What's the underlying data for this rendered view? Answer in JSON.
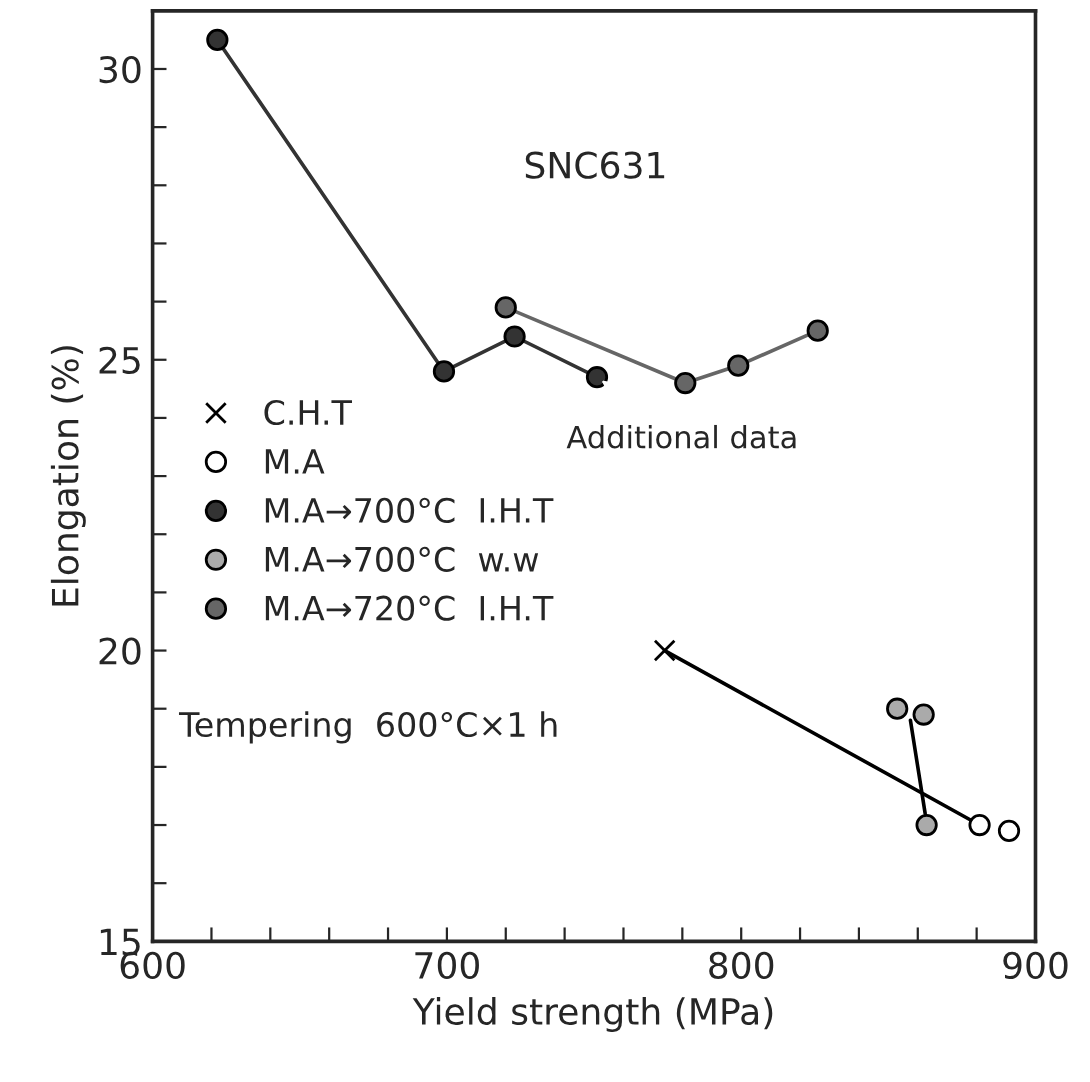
{
  "chart_data": {
    "type": "line",
    "xlabel": "Yield strength (MPa)",
    "ylabel": "Elongation (%)",
    "xlim": [
      600,
      900
    ],
    "ylim": [
      15,
      31
    ],
    "xticks": [
      600,
      {
        "value": 620,
        "label": null
      },
      {
        "value": 640,
        "label": null
      },
      {
        "value": 660,
        "label": null
      },
      {
        "value": 680,
        "label": null
      },
      700,
      {
        "value": 720,
        "label": null
      },
      {
        "value": 740,
        "label": null
      },
      {
        "value": 760,
        "label": null
      },
      {
        "value": 780,
        "label": null
      },
      800,
      {
        "value": 820,
        "label": null
      },
      {
        "value": 840,
        "label": null
      },
      {
        "value": 860,
        "label": null
      },
      {
        "value": 880,
        "label": null
      },
      900
    ],
    "yticks": [
      15,
      {
        "value": 16,
        "label": null
      },
      {
        "value": 17,
        "label": null
      },
      {
        "value": 18,
        "label": null
      },
      {
        "value": 19,
        "label": null
      },
      20,
      {
        "value": 21,
        "label": null
      },
      {
        "value": 22,
        "label": null
      },
      {
        "value": 23,
        "label": null
      },
      {
        "value": 24,
        "label": null
      },
      25,
      {
        "value": 26,
        "label": null
      },
      {
        "value": 27,
        "label": null
      },
      {
        "value": 28,
        "label": null
      },
      {
        "value": 29,
        "label": null
      },
      30
    ],
    "grid": false,
    "legend": "left",
    "series": [
      {
        "name": "C.H.T",
        "type": "scatter",
        "marker": "cross",
        "color": "#000000",
        "x": [
          774
        ],
        "values": [
          20.0
        ]
      },
      {
        "name": "M.A",
        "type": "scatter",
        "marker": "circle",
        "color": "#ffffff",
        "x": [
          881,
          891
        ],
        "values": [
          17.0,
          16.9
        ]
      },
      {
        "name": "M.A→700°C  I.H.T",
        "marker": "circle",
        "color": "#333333",
        "x": [
          622,
          699,
          723,
          751
        ],
        "values": [
          30.5,
          24.8,
          25.4,
          24.7
        ]
      },
      {
        "name": "M.A→700°C  w.w",
        "type": "scatter",
        "marker": "circle",
        "color": "#aaaaaa",
        "x": [
          853,
          862,
          863
        ],
        "values": [
          19.0,
          18.9,
          17.0
        ]
      },
      {
        "name": "M.A→720°C  I.H.T",
        "marker": "circle",
        "color": "#666666",
        "x": [
          720,
          781,
          799,
          826
        ],
        "values": [
          25.9,
          24.6,
          24.9,
          25.5
        ]
      },
      {
        "marker": "none",
        "color": "#000000",
        "x": [
          774,
          881
        ],
        "values": [
          20.0,
          17.0
        ]
      },
      {
        "marker": "none",
        "color": "#000000",
        "x": [
          857.5,
          862.5
        ],
        "values": [
          18.8,
          17.2
        ]
      }
    ],
    "annotations": [
      {
        "text": "SNC631"
      },
      {
        "text": "Tempering  600°C×1 h"
      },
      {
        "text": "Additional data",
        "x": 751,
        "y": 24.7
      }
    ]
  }
}
